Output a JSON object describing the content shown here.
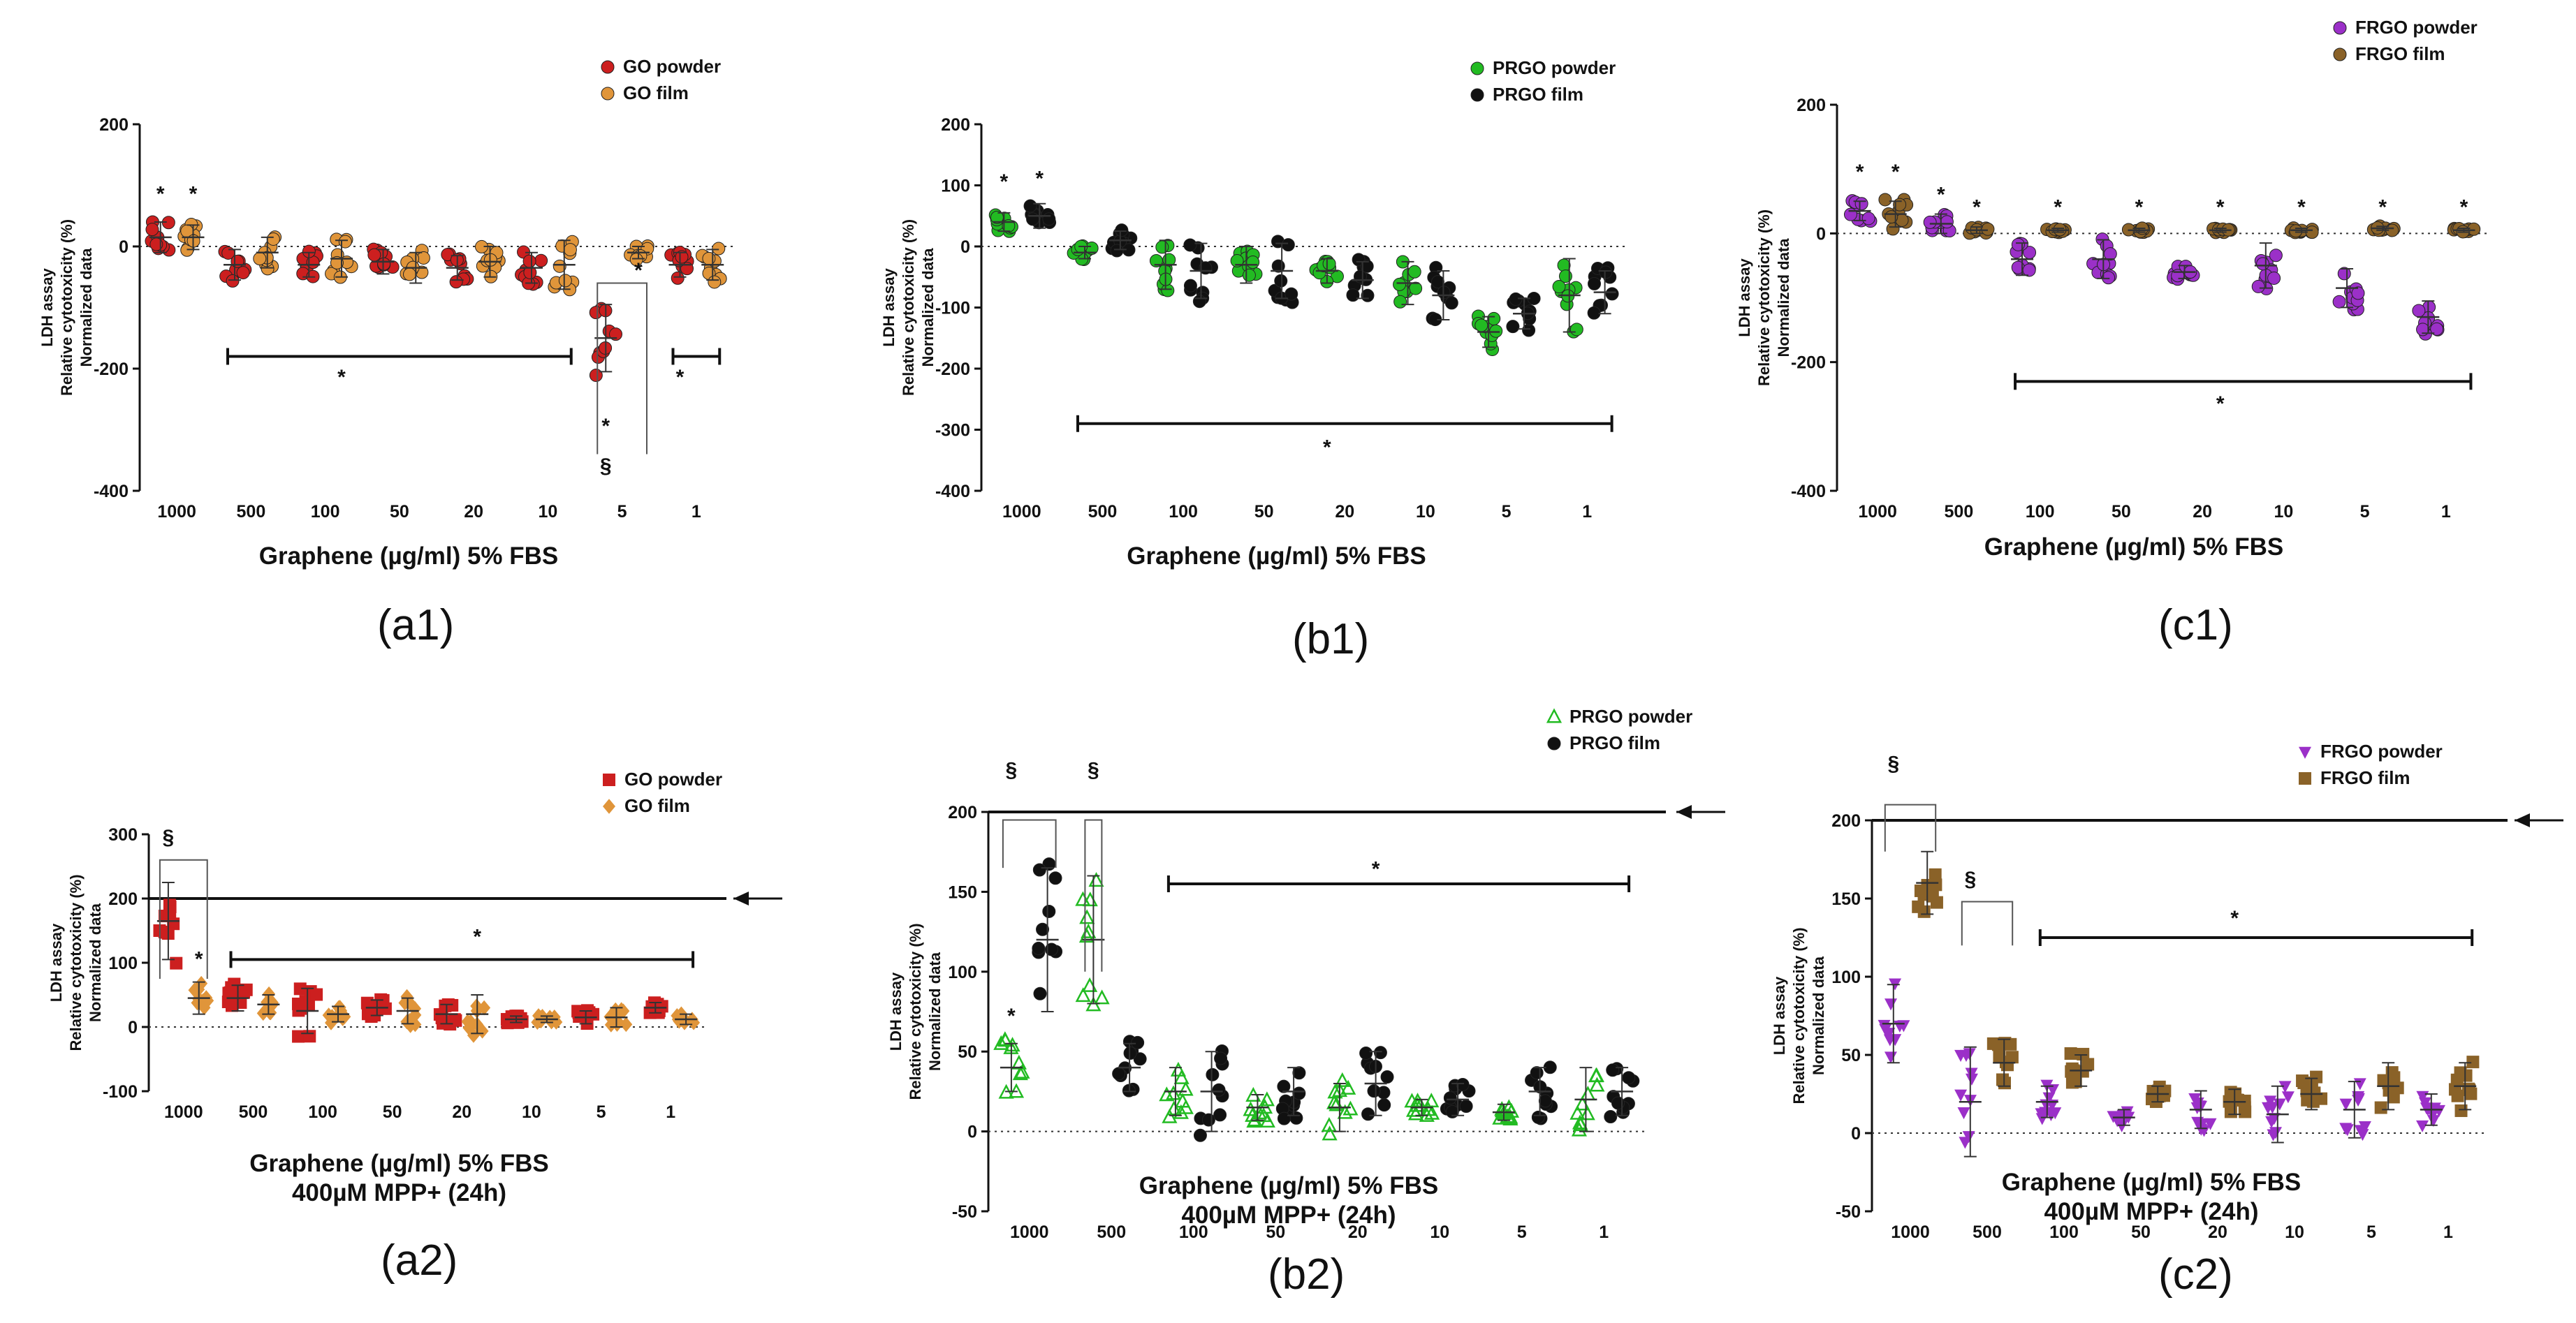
{
  "colors": {
    "go_powder": "#cc1f1f",
    "go_film": "#e0953a",
    "prgo_powder": "#22bb22",
    "prgo_film": "#111111",
    "frgo_powder": "#9b30c8",
    "frgo_film": "#8a6228"
  },
  "chart_data": [
    {
      "id": "a1",
      "panel_label": "(a1)",
      "type": "scatter",
      "title": "",
      "xlabel": "Graphene (µg/ml) 5% FBS",
      "xlabel2": "",
      "ylabel_lines": [
        "LDH assay",
        "Relative cytotoxicity (%)",
        "Normalized data"
      ],
      "ylim": [
        -400,
        200
      ],
      "yticks": [
        "200",
        "0",
        "-200",
        "-400"
      ],
      "categories": [
        "1000",
        "500",
        "100",
        "50",
        "20",
        "10",
        "5",
        "1"
      ],
      "legend": [
        {
          "name": "GO powder",
          "marker": "circle",
          "color": "#cc1f1f"
        },
        {
          "name": "GO film",
          "marker": "circle",
          "color": "#e0953a"
        }
      ],
      "series": [
        {
          "name": "GO powder",
          "means": [
            15,
            -30,
            -30,
            -25,
            -35,
            -35,
            -150,
            -30
          ],
          "sd": [
            25,
            25,
            20,
            20,
            20,
            25,
            55,
            20
          ]
        },
        {
          "name": "GO film",
          "means": [
            15,
            -10,
            -20,
            -35,
            -25,
            -30,
            -10,
            -30
          ],
          "sd": [
            20,
            25,
            30,
            25,
            25,
            40,
            10,
            25
          ]
        }
      ],
      "annotations": [
        {
          "text": "*",
          "cat": 0,
          "series": 0,
          "y": 75
        },
        {
          "text": "*",
          "cat": 0,
          "series": 1,
          "y": 75
        },
        {
          "text": "*",
          "cat": 6,
          "series": 0,
          "y": -305
        },
        {
          "text": "*",
          "cat": 6,
          "series": 1,
          "y": -50
        },
        {
          "text": "§",
          "cat": 6,
          "series": 0,
          "y": -370
        },
        {
          "text": "*",
          "cat": 2,
          "series": 1,
          "y": -225
        },
        {
          "text": "*",
          "cat": 7,
          "series": 0,
          "y": -225
        }
      ],
      "brackets": [
        {
          "from": [
            1,
            0
          ],
          "to": [
            5,
            1
          ],
          "y": -180
        },
        {
          "from": [
            7,
            0
          ],
          "to": [
            7,
            1
          ],
          "y": -180
        }
      ],
      "section_brackets": [
        {
          "from": [
            6,
            0
          ],
          "to": [
            6,
            1
          ],
          "top": -60,
          "bottom": -340
        }
      ],
      "thick_line": null
    },
    {
      "id": "b1",
      "panel_label": "(b1)",
      "type": "scatter",
      "title": "",
      "xlabel": "Graphene (µg/ml) 5% FBS",
      "xlabel2": "",
      "ylabel_lines": [
        "LDH assay",
        "Relative cytotoxicity (%)",
        "Normalized data"
      ],
      "ylim": [
        -400,
        200
      ],
      "yticks": [
        "200",
        "100",
        "0",
        "-100",
        "-200",
        "-300",
        "-400"
      ],
      "categories": [
        "1000",
        "500",
        "100",
        "50",
        "20",
        "10",
        "5",
        "1"
      ],
      "legend": [
        {
          "name": "PRGO powder",
          "marker": "circle",
          "color": "#22bb22"
        },
        {
          "name": "PRGO film",
          "marker": "circle",
          "color": "#111111"
        }
      ],
      "series": [
        {
          "name": "PRGO powder",
          "means": [
            40,
            -10,
            -30,
            -30,
            -40,
            -60,
            -140,
            -80
          ],
          "sd": [
            15,
            10,
            40,
            30,
            20,
            35,
            25,
            60
          ]
        },
        {
          "name": "PRGO film",
          "means": [
            50,
            10,
            -40,
            -40,
            -55,
            -80,
            -110,
            -75
          ],
          "sd": [
            20,
            15,
            45,
            45,
            30,
            40,
            25,
            35
          ]
        }
      ],
      "annotations": [
        {
          "text": "*",
          "cat": 0,
          "series": 0,
          "y": 95
        },
        {
          "text": "*",
          "cat": 0,
          "series": 1,
          "y": 100
        },
        {
          "text": "*",
          "cat": 4,
          "series": 0,
          "y": -340
        }
      ],
      "brackets": [
        {
          "from": [
            1,
            0
          ],
          "to": [
            7,
            1
          ],
          "y": -290
        }
      ],
      "section_brackets": [],
      "thick_line": null
    },
    {
      "id": "c1",
      "panel_label": "(c1)",
      "type": "scatter",
      "title": "",
      "xlabel": "Graphene (µg/ml) 5% FBS",
      "xlabel2": "",
      "ylabel_lines": [
        "LDH assay",
        "Relative cytotoxicity (%)",
        "Normalized data"
      ],
      "ylim": [
        -400,
        200
      ],
      "yticks": [
        "200",
        "0",
        "-200",
        "-400"
      ],
      "categories": [
        "1000",
        "500",
        "100",
        "50",
        "20",
        "10",
        "5",
        "1"
      ],
      "legend": [
        {
          "name": "FRGO powder",
          "marker": "circle",
          "color": "#9b30c8"
        },
        {
          "name": "FRGO film",
          "marker": "circle",
          "color": "#8a6228"
        }
      ],
      "series": [
        {
          "name": "FRGO powder",
          "means": [
            35,
            15,
            -40,
            -40,
            -60,
            -50,
            -85,
            -130
          ],
          "sd": [
            15,
            15,
            25,
            30,
            10,
            35,
            30,
            25
          ]
        },
        {
          "name": "FRGO film",
          "means": [
            30,
            5,
            5,
            5,
            5,
            5,
            8,
            5
          ],
          "sd": [
            20,
            5,
            3,
            3,
            3,
            3,
            3,
            3
          ]
        }
      ],
      "annotations": [
        {
          "text": "*",
          "cat": 0,
          "series": 0,
          "y": 85
        },
        {
          "text": "*",
          "cat": 0,
          "series": 1,
          "y": 85
        },
        {
          "text": "*",
          "cat": 1,
          "series": 0,
          "y": 50
        },
        {
          "text": "*",
          "cat": 1,
          "series": 1,
          "y": 30
        },
        {
          "text": "*",
          "cat": 2,
          "series": 1,
          "y": 30
        },
        {
          "text": "*",
          "cat": 3,
          "series": 1,
          "y": 30
        },
        {
          "text": "*",
          "cat": 4,
          "series": 1,
          "y": 30
        },
        {
          "text": "*",
          "cat": 5,
          "series": 1,
          "y": 30
        },
        {
          "text": "*",
          "cat": 6,
          "series": 1,
          "y": 30
        },
        {
          "text": "*",
          "cat": 7,
          "series": 1,
          "y": 30
        },
        {
          "text": "*",
          "cat": 4,
          "series": 1,
          "y": -275
        }
      ],
      "brackets": [
        {
          "from": [
            2,
            0
          ],
          "to": [
            7,
            1
          ],
          "y": -230
        }
      ],
      "section_brackets": [],
      "thick_line": null
    },
    {
      "id": "a2",
      "panel_label": "(a2)",
      "type": "scatter",
      "title": "",
      "xlabel": "Graphene (µg/ml) 5% FBS",
      "xlabel2": "400µM MPP+ (24h)",
      "ylabel_lines": [
        "LDH assay",
        "Relative cytotoxicity (%)",
        "Normalized data"
      ],
      "ylim": [
        -100,
        300
      ],
      "yticks": [
        "300",
        "200",
        "100",
        "0",
        "-100"
      ],
      "categories": [
        "1000",
        "500",
        "100",
        "50",
        "20",
        "10",
        "5",
        "1"
      ],
      "legend": [
        {
          "name": "GO powder",
          "marker": "square",
          "color": "#cc1f1f"
        },
        {
          "name": "GO film",
          "marker": "diamond",
          "color": "#e0953a"
        }
      ],
      "series": [
        {
          "name": "GO powder",
          "means": [
            165,
            45,
            25,
            30,
            20,
            12,
            15,
            30
          ],
          "sd": [
            60,
            20,
            35,
            12,
            15,
            5,
            10,
            8
          ]
        },
        {
          "name": "GO film",
          "means": [
            45,
            35,
            20,
            25,
            20,
            12,
            15,
            12
          ],
          "sd": [
            25,
            15,
            12,
            20,
            30,
            5,
            15,
            8
          ]
        }
      ],
      "annotations": [
        {
          "text": "§",
          "cat": 0,
          "series": 0,
          "y": 285
        },
        {
          "text": "*",
          "cat": 0,
          "series": 1,
          "y": 95
        },
        {
          "text": "*",
          "cat": 4,
          "series": 1,
          "y": 130
        }
      ],
      "brackets": [
        {
          "from": [
            1,
            0
          ],
          "to": [
            7,
            1
          ],
          "y": 105
        }
      ],
      "section_brackets": [
        {
          "from": [
            0,
            0
          ],
          "to": [
            0,
            1
          ],
          "top": 260,
          "bottom": 75
        }
      ],
      "thick_line": {
        "y": 200,
        "arrow": true
      }
    },
    {
      "id": "b2",
      "panel_label": "(b2)",
      "type": "scatter",
      "title": "",
      "xlabel": "Graphene (µg/ml) 5% FBS",
      "xlabel2": "400µM MPP+ (24h)",
      "ylabel_lines": [
        "LDH assay",
        "Relative cytotoxicity (%)",
        "Normalized data"
      ],
      "ylim": [
        -50,
        200
      ],
      "yticks": [
        "200",
        "150",
        "100",
        "50",
        "0",
        "-50"
      ],
      "categories": [
        "1000",
        "500",
        "100",
        "50",
        "20",
        "10",
        "5",
        "1"
      ],
      "legend": [
        {
          "name": "PRGO powder",
          "marker": "triangle",
          "color": "#22bb22"
        },
        {
          "name": "PRGO film",
          "marker": "circle",
          "color": "#111111"
        }
      ],
      "series": [
        {
          "name": "PRGO powder",
          "means": [
            40,
            120,
            25,
            15,
            15,
            15,
            12,
            20
          ],
          "sd": [
            15,
            40,
            15,
            8,
            15,
            5,
            5,
            20
          ]
        },
        {
          "name": "PRGO film",
          "means": [
            120,
            40,
            25,
            25,
            30,
            20,
            25,
            25
          ],
          "sd": [
            45,
            15,
            25,
            15,
            20,
            10,
            15,
            15
          ]
        }
      ],
      "annotations": [
        {
          "text": "§",
          "cat": 0,
          "series": 0,
          "y": 222
        },
        {
          "text": "§",
          "cat": 1,
          "series": 0,
          "y": 222
        },
        {
          "text": "*",
          "cat": 0,
          "series": 0,
          "y": 68
        },
        {
          "text": "*",
          "cat": 4,
          "series": 1,
          "y": 160
        }
      ],
      "brackets": [
        {
          "from": [
            2,
            0
          ],
          "to": [
            7,
            1
          ],
          "y": 155
        }
      ],
      "section_brackets": [
        {
          "from": [
            0,
            0
          ],
          "to": [
            0,
            1
          ],
          "top": 195,
          "bottom": 165
        },
        {
          "from": [
            1,
            0
          ],
          "to": [
            1,
            0
          ],
          "top": 195,
          "bottom": 100
        }
      ],
      "thick_line": {
        "y": 200,
        "arrow": true
      }
    },
    {
      "id": "c2",
      "panel_label": "(c2)",
      "type": "scatter",
      "title": "",
      "xlabel": "Graphene (µg/ml) 5% FBS",
      "xlabel2": "400µM MPP+ (24h)",
      "ylabel_lines": [
        "LDH assay",
        "Relative cytotoxicity (%)",
        "Normalized data"
      ],
      "ylim": [
        -50,
        200
      ],
      "yticks": [
        "200",
        "150",
        "100",
        "50",
        "0",
        "-50"
      ],
      "categories": [
        "1000",
        "500",
        "100",
        "50",
        "20",
        "10",
        "5",
        "1"
      ],
      "legend": [
        {
          "name": "FRGO powder",
          "marker": "triangle-down",
          "color": "#9b30c8"
        },
        {
          "name": "FRGO film",
          "marker": "square",
          "color": "#8a6228"
        }
      ],
      "series": [
        {
          "name": "FRGO powder",
          "means": [
            70,
            20,
            20,
            10,
            15,
            12,
            15,
            15
          ],
          "sd": [
            25,
            35,
            10,
            5,
            12,
            18,
            18,
            10
          ]
        },
        {
          "name": "FRGO film",
          "means": [
            160,
            45,
            40,
            25,
            20,
            25,
            30,
            30
          ],
          "sd": [
            20,
            15,
            10,
            5,
            8,
            10,
            15,
            15
          ]
        }
      ],
      "annotations": [
        {
          "text": "§",
          "cat": 0,
          "series": 0,
          "y": 232
        },
        {
          "text": "§",
          "cat": 1,
          "series": 0,
          "y": 158
        },
        {
          "text": "*",
          "cat": 4,
          "series": 1,
          "y": 133
        }
      ],
      "brackets": [
        {
          "from": [
            2,
            0
          ],
          "to": [
            7,
            1
          ],
          "y": 125
        }
      ],
      "section_brackets": [
        {
          "from": [
            0,
            0
          ],
          "to": [
            0,
            1
          ],
          "top": 210,
          "bottom": 180
        },
        {
          "from": [
            1,
            0
          ],
          "to": [
            1,
            1
          ],
          "top": 148,
          "bottom": 120
        }
      ],
      "thick_line": {
        "y": 200,
        "arrow": true
      }
    }
  ]
}
